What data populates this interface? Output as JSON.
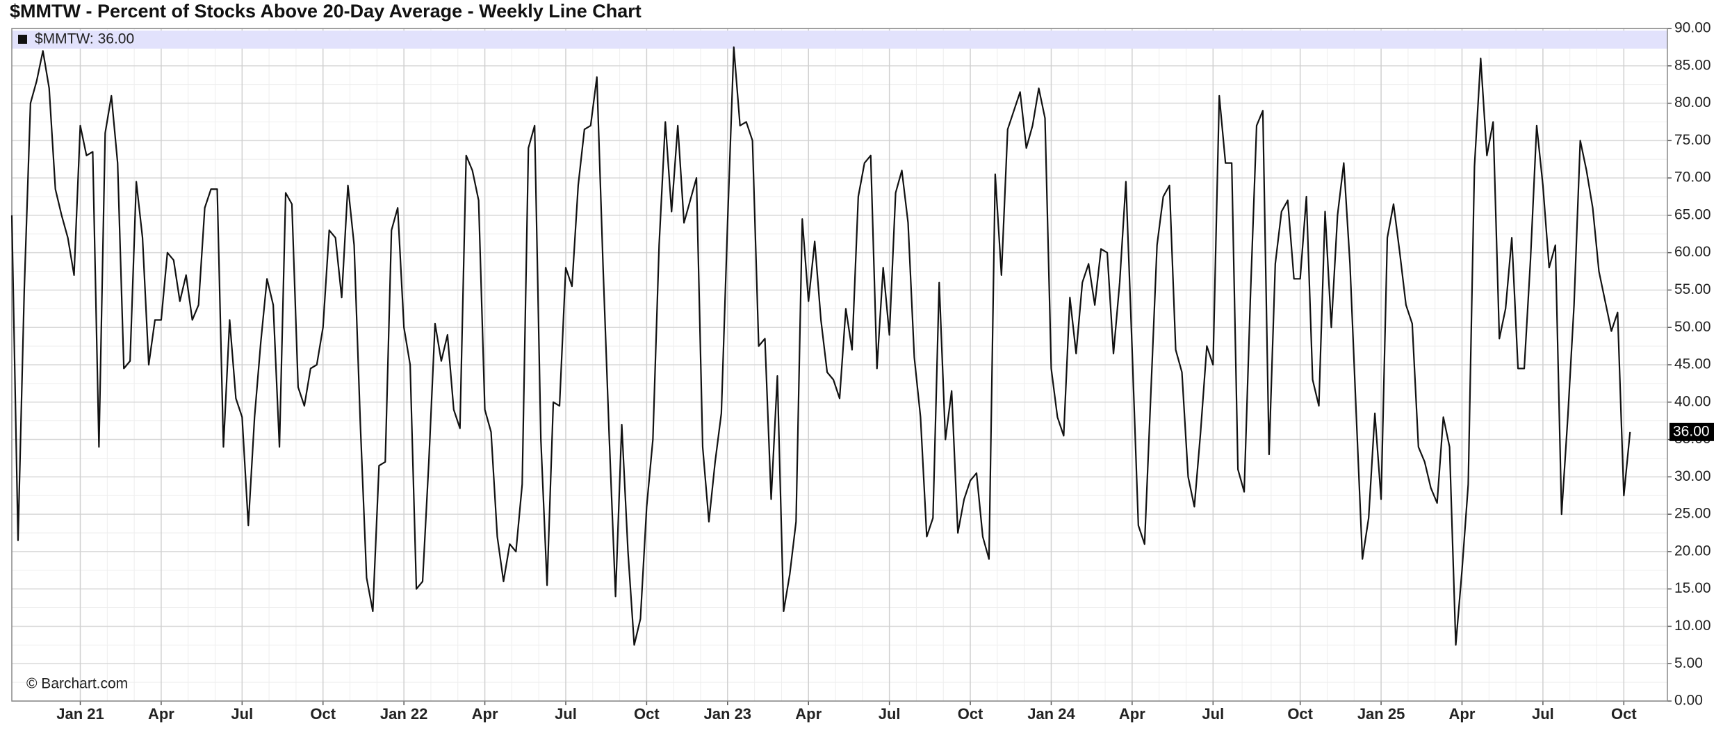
{
  "chart_data": {
    "type": "line",
    "title": "$MMTW - Percent of Stocks Above 20-Day Average - Weekly Line Chart",
    "legend_text": "$MMTW: 36.00",
    "credit": "© Barchart.com",
    "last_value": {
      "value": 36,
      "label": "36.00"
    },
    "series": [
      {
        "name": "$MMTW",
        "color": "#111111",
        "values": [
          65,
          21.5,
          55,
          80,
          83,
          87,
          82,
          68.5,
          65,
          62,
          57,
          77,
          73,
          73.5,
          34,
          76,
          81,
          72,
          44.5,
          45.5,
          69.5,
          62,
          45,
          51,
          51,
          60,
          59,
          53.5,
          57,
          51,
          53,
          66,
          68.5,
          68.5,
          34,
          51,
          40.5,
          38,
          23.5,
          38,
          48,
          56.5,
          53,
          34,
          68,
          66.5,
          42,
          39.5,
          44.5,
          45,
          50,
          63,
          62,
          54,
          69,
          61,
          37,
          16.5,
          12,
          31.5,
          32,
          63,
          66,
          50,
          45,
          15,
          16,
          32,
          50.5,
          45.5,
          49,
          39,
          36.5,
          73,
          71,
          67,
          39,
          36,
          22,
          16,
          21,
          20,
          29,
          74,
          77,
          35,
          15.5,
          40,
          39.5,
          58,
          55.5,
          69,
          76.5,
          77,
          83.5,
          58,
          35,
          14,
          37,
          20,
          7.5,
          11,
          26,
          35,
          61,
          77.5,
          65.5,
          77,
          64,
          67,
          70,
          34,
          24,
          32,
          38.5,
          64,
          87.5,
          77,
          77.5,
          75,
          47.5,
          48.5,
          27,
          43.5,
          12,
          17,
          24,
          64.5,
          53.5,
          61.5,
          51,
          44,
          43,
          40.5,
          52.5,
          47,
          67.5,
          72,
          73,
          44.5,
          58,
          49,
          68,
          71,
          64,
          46,
          38,
          22,
          24.5,
          56,
          35,
          41.5,
          22.5,
          27,
          29.5,
          30.5,
          22,
          19,
          70.5,
          57,
          76.5,
          79,
          81.5,
          74,
          77,
          82,
          78,
          44.5,
          38,
          35.5,
          54,
          46.5,
          56,
          58.5,
          53,
          60.5,
          60,
          46.5,
          56,
          69.5,
          47,
          23.5,
          21,
          41,
          61,
          67.5,
          69,
          47,
          44,
          30,
          26,
          36,
          47.5,
          45,
          81,
          72,
          72,
          31,
          28,
          54,
          77,
          79,
          33,
          58.5,
          65.5,
          67,
          56.5,
          56.5,
          67.5,
          43,
          39.5,
          65.5,
          50,
          65,
          72,
          58.5,
          38.5,
          19,
          24.5,
          38.5,
          27,
          62,
          66.5,
          60,
          53,
          50.5,
          34,
          32,
          28.5,
          26.5,
          38,
          34,
          7.5,
          17.5,
          29,
          71.5,
          86,
          73,
          77.5,
          48.5,
          52.5,
          62,
          44.5,
          44.5,
          59,
          77,
          69,
          58,
          61,
          25,
          38,
          53,
          75,
          71,
          66,
          57.5,
          53.5,
          49.5,
          52,
          27.5,
          36
        ]
      }
    ],
    "xlim": [
      0,
      266
    ],
    "xticks": [
      {
        "value": 11,
        "label": "Jan 21"
      },
      {
        "value": 24,
        "label": "Apr"
      },
      {
        "value": 37,
        "label": "Jul"
      },
      {
        "value": 50,
        "label": "Oct"
      },
      {
        "value": 63,
        "label": "Jan 22"
      },
      {
        "value": 76,
        "label": "Apr"
      },
      {
        "value": 89,
        "label": "Jul"
      },
      {
        "value": 102,
        "label": "Oct"
      },
      {
        "value": 115,
        "label": "Jan 23"
      },
      {
        "value": 128,
        "label": "Apr"
      },
      {
        "value": 141,
        "label": "Jul"
      },
      {
        "value": 154,
        "label": "Oct"
      },
      {
        "value": 167,
        "label": "Jan 24"
      },
      {
        "value": 180,
        "label": "Apr"
      },
      {
        "value": 193,
        "label": "Jul"
      },
      {
        "value": 207,
        "label": "Oct"
      },
      {
        "value": 220,
        "label": "Jan 25"
      },
      {
        "value": 233,
        "label": "Apr"
      },
      {
        "value": 246,
        "label": "Jul"
      },
      {
        "value": 259,
        "label": "Oct"
      }
    ],
    "ylim": [
      0,
      90
    ],
    "yticks": [
      {
        "value": 0,
        "label": "0.00"
      },
      {
        "value": 5,
        "label": "5.00"
      },
      {
        "value": 10,
        "label": "10.00"
      },
      {
        "value": 15,
        "label": "15.00"
      },
      {
        "value": 20,
        "label": "20.00"
      },
      {
        "value": 25,
        "label": "25.00"
      },
      {
        "value": 30,
        "label": "30.00"
      },
      {
        "value": 35,
        "label": "35.00"
      },
      {
        "value": 40,
        "label": "40.00"
      },
      {
        "value": 45,
        "label": "45.00"
      },
      {
        "value": 50,
        "label": "50.00"
      },
      {
        "value": 55,
        "label": "55.00"
      },
      {
        "value": 60,
        "label": "60.00"
      },
      {
        "value": 65,
        "label": "65.00"
      },
      {
        "value": 70,
        "label": "70.00"
      },
      {
        "value": 75,
        "label": "75.00"
      },
      {
        "value": 80,
        "label": "80.00"
      },
      {
        "value": 85,
        "label": "85.00"
      },
      {
        "value": 90,
        "label": "90.00"
      }
    ],
    "grid": true
  }
}
